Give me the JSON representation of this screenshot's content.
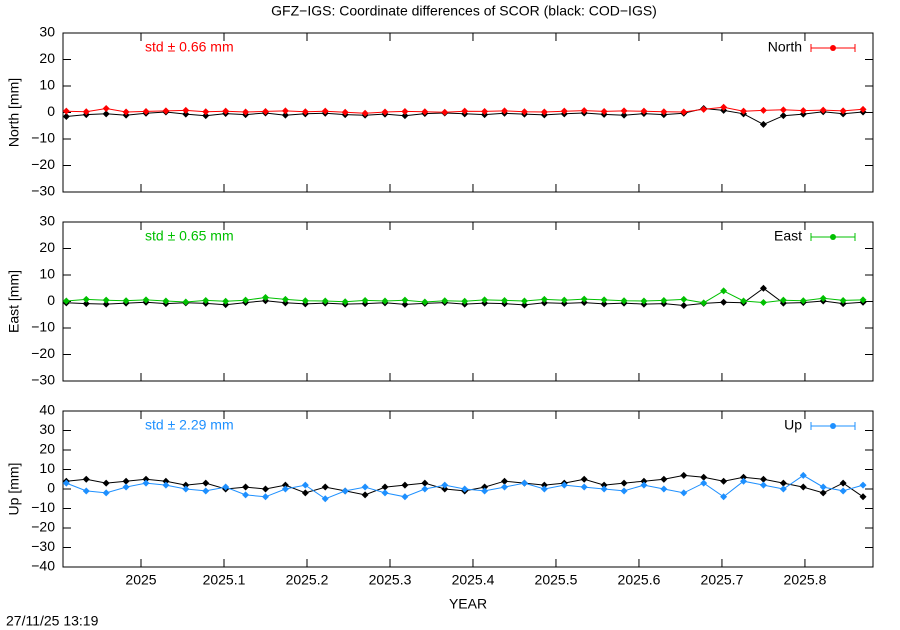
{
  "title": "GFZ−IGS: Coordinate differences of SCOR (black: COD−IGS)",
  "timestamp": "27/11/25 13:19",
  "chart_data": [
    {
      "type": "line",
      "ylabel": "North [mm]",
      "annotation": "std ± 0.66 mm",
      "annotation_color": "#ff0000",
      "legend": "upper right",
      "xlim": [
        2024.906,
        2025.882
      ],
      "ylim": [
        -30,
        30
      ],
      "yticks": [
        {
          "value": -30,
          "label": "−30"
        },
        {
          "value": -20,
          "label": "−20"
        },
        {
          "value": -10,
          "label": "−10"
        },
        0,
        10,
        20,
        30
      ],
      "x": [
        2024.91,
        2024.934,
        2024.958,
        2024.982,
        2025.006,
        2025.03,
        2025.054,
        2025.078,
        2025.102,
        2025.126,
        2025.15,
        2025.174,
        2025.198,
        2025.222,
        2025.246,
        2025.27,
        2025.294,
        2025.318,
        2025.342,
        2025.366,
        2025.39,
        2025.414,
        2025.438,
        2025.462,
        2025.486,
        2025.51,
        2025.534,
        2025.558,
        2025.582,
        2025.606,
        2025.63,
        2025.654,
        2025.678,
        2025.702,
        2025.726,
        2025.75,
        2025.774,
        2025.798,
        2025.822,
        2025.846,
        2025.87
      ],
      "series": [
        {
          "color": "#000000",
          "values": [
            -1.5,
            -0.8,
            -0.5,
            -1.0,
            -0.3,
            0.2,
            -0.6,
            -1.2,
            -0.4,
            -0.8,
            -0.2,
            -1.0,
            -0.5,
            -0.3,
            -0.8,
            -1.0,
            -0.6,
            -1.2,
            -0.4,
            -0.2,
            -0.5,
            -0.8,
            -0.3,
            -0.6,
            -0.9,
            -0.5,
            -0.2,
            -0.7,
            -1.0,
            -0.4,
            -0.8,
            -0.3,
            1.5,
            0.8,
            -0.5,
            -4.5,
            -1.2,
            -0.6,
            0.3,
            -0.5,
            0.2
          ]
        },
        {
          "name": "North",
          "color": "#ff0000",
          "values": [
            0.5,
            0.3,
            1.5,
            0.2,
            0.4,
            0.6,
            0.8,
            0.3,
            0.5,
            0.2,
            0.4,
            0.6,
            0.3,
            0.5,
            0.1,
            -0.3,
            0.2,
            0.4,
            0.3,
            0.1,
            0.5,
            0.4,
            0.6,
            0.3,
            0.2,
            0.5,
            0.7,
            0.4,
            0.6,
            0.5,
            0.3,
            0.2,
            1.2,
            2.0,
            0.5,
            0.8,
            1.0,
            0.7,
            0.9,
            0.6,
            1.2
          ]
        }
      ]
    },
    {
      "type": "line",
      "ylabel": "East [mm]",
      "annotation": "std ± 0.65 mm",
      "annotation_color": "#00c000",
      "legend": "upper right",
      "xlim": [
        2024.906,
        2025.882
      ],
      "ylim": [
        -30,
        30
      ],
      "yticks": [
        {
          "value": -30,
          "label": "−30"
        },
        {
          "value": -20,
          "label": "−20"
        },
        {
          "value": -10,
          "label": "−10"
        },
        0,
        10,
        20,
        30
      ],
      "x": [
        2024.91,
        2024.934,
        2024.958,
        2024.982,
        2025.006,
        2025.03,
        2025.054,
        2025.078,
        2025.102,
        2025.126,
        2025.15,
        2025.174,
        2025.198,
        2025.222,
        2025.246,
        2025.27,
        2025.294,
        2025.318,
        2025.342,
        2025.366,
        2025.39,
        2025.414,
        2025.438,
        2025.462,
        2025.486,
        2025.51,
        2025.534,
        2025.558,
        2025.582,
        2025.606,
        2025.63,
        2025.654,
        2025.678,
        2025.702,
        2025.726,
        2025.75,
        2025.774,
        2025.798,
        2025.822,
        2025.846,
        2025.87
      ],
      "series": [
        {
          "color": "#000000",
          "values": [
            -0.5,
            -0.8,
            -1.0,
            -0.6,
            -0.3,
            -0.8,
            -0.5,
            -0.7,
            -1.2,
            -0.4,
            0.3,
            -0.5,
            -0.9,
            -0.6,
            -1.0,
            -0.8,
            -0.5,
            -1.1,
            -0.7,
            -0.4,
            -1.0,
            -0.6,
            -0.8,
            -1.3,
            -0.5,
            -0.7,
            -0.4,
            -0.9,
            -0.6,
            -1.0,
            -0.8,
            -1.5,
            -0.7,
            -0.3,
            -0.5,
            5.0,
            -0.6,
            -0.4,
            0.2,
            -0.8,
            -0.3
          ]
        },
        {
          "name": "East",
          "color": "#00c000",
          "values": [
            0.2,
            0.8,
            0.5,
            0.3,
            0.6,
            0.2,
            -0.2,
            0.4,
            0.1,
            0.5,
            1.5,
            0.8,
            0.3,
            0.2,
            -0.1,
            0.4,
            0.2,
            0.5,
            -0.2,
            0.3,
            0.1,
            0.6,
            0.4,
            0.2,
            0.8,
            0.5,
            0.9,
            0.6,
            0.3,
            0.2,
            0.4,
            0.8,
            -0.5,
            4.0,
            0.2,
            -0.4,
            0.5,
            0.3,
            1.2,
            0.4,
            0.6
          ]
        }
      ]
    },
    {
      "type": "line",
      "ylabel": "Up [mm]",
      "xlabel": "YEAR",
      "annotation": "std ± 2.29 mm",
      "annotation_color": "#1e90ff",
      "legend": "upper right",
      "xlim": [
        2024.906,
        2025.882
      ],
      "ylim": [
        -40,
        40
      ],
      "xticks": [
        2025,
        2025.1,
        2025.2,
        2025.3,
        2025.4,
        2025.5,
        2025.6,
        2025.7,
        2025.8
      ],
      "yticks": [
        {
          "value": -40,
          "label": "−40"
        },
        {
          "value": -30,
          "label": "−30"
        },
        {
          "value": -20,
          "label": "−20"
        },
        {
          "value": -10,
          "label": "−10"
        },
        0,
        10,
        20,
        30,
        40
      ],
      "x": [
        2024.91,
        2024.934,
        2024.958,
        2024.982,
        2025.006,
        2025.03,
        2025.054,
        2025.078,
        2025.102,
        2025.126,
        2025.15,
        2025.174,
        2025.198,
        2025.222,
        2025.246,
        2025.27,
        2025.294,
        2025.318,
        2025.342,
        2025.366,
        2025.39,
        2025.414,
        2025.438,
        2025.462,
        2025.486,
        2025.51,
        2025.534,
        2025.558,
        2025.582,
        2025.606,
        2025.63,
        2025.654,
        2025.678,
        2025.702,
        2025.726,
        2025.75,
        2025.774,
        2025.798,
        2025.822,
        2025.846,
        2025.87
      ],
      "series": [
        {
          "color": "#000000",
          "values": [
            4,
            5,
            3,
            4,
            5,
            4,
            2,
            3,
            0,
            1,
            0,
            2,
            -2,
            1,
            -1,
            -3,
            1,
            2,
            3,
            0,
            -1,
            1,
            4,
            3,
            2,
            3,
            5,
            2,
            3,
            4,
            5,
            7,
            6,
            4,
            6,
            5,
            3,
            1,
            -2,
            3,
            -4
          ]
        },
        {
          "name": "Up",
          "color": "#1e90ff",
          "values": [
            3,
            -1,
            -2,
            1,
            3,
            2,
            0,
            -1,
            1,
            -3,
            -4,
            0,
            2,
            -5,
            -1,
            1,
            -2,
            -4,
            0,
            2,
            0,
            -1,
            1,
            3,
            0,
            2,
            1,
            0,
            -1,
            2,
            0,
            -2,
            3,
            -4,
            4,
            2,
            0,
            7,
            1,
            -1,
            2
          ]
        }
      ]
    }
  ]
}
